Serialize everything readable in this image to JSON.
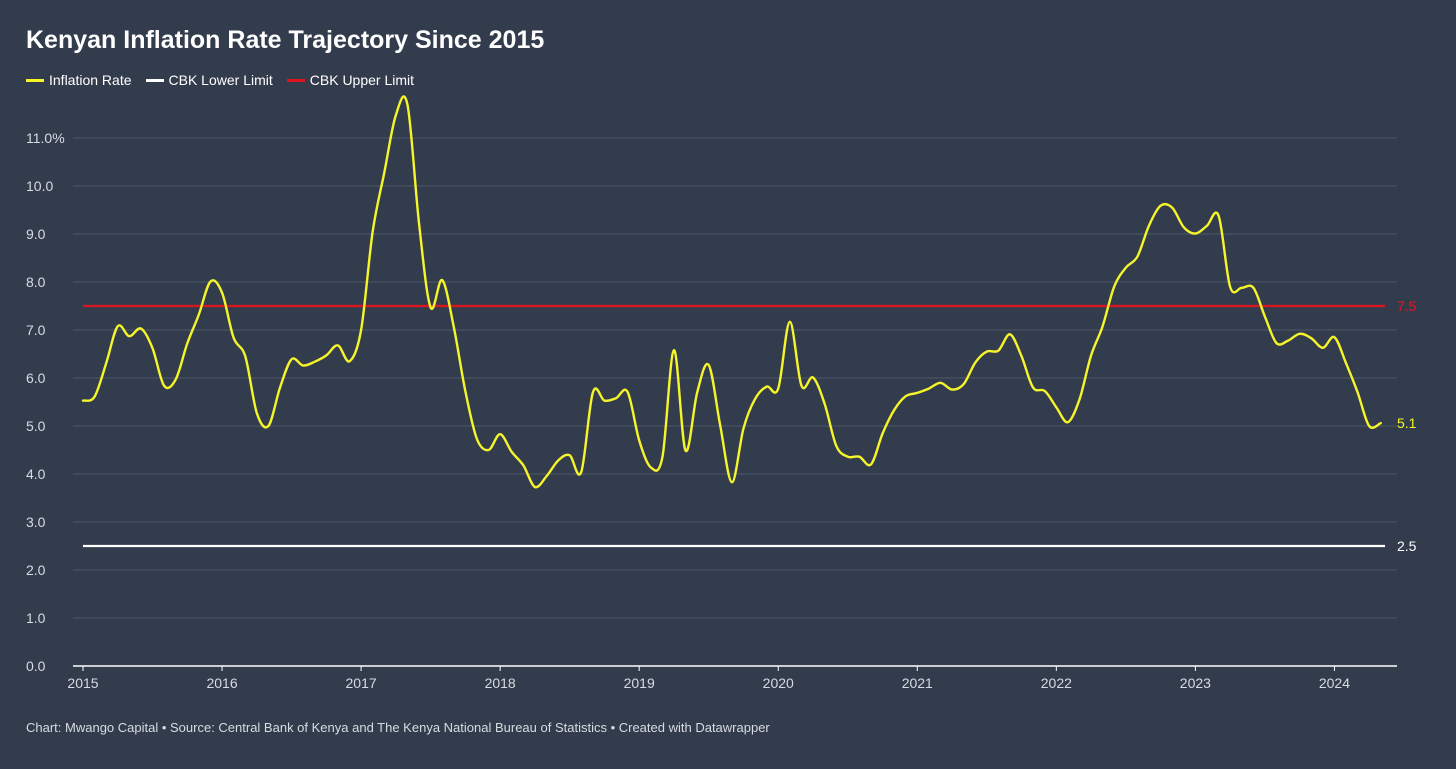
{
  "title": "Kenyan Inflation Rate Trajectory Since 2015",
  "footer": "Chart: Mwango Capital • Source: Central Bank of Kenya and The Kenya National Bureau of Statistics • Created with Datawrapper",
  "colors": {
    "background": "#333c4d",
    "inflation": "#f5f52a",
    "lower": "#ffffff",
    "upper": "#e0141e",
    "grid": "#4e5768",
    "tick": "#d7dbe2"
  },
  "legend": [
    {
      "label": "Inflation Rate",
      "color": "#f5f52a"
    },
    {
      "label": "CBK Lower Limit",
      "color": "#ffffff"
    },
    {
      "label": "CBK Upper Limit",
      "color": "#e0141e"
    }
  ],
  "chart_data": {
    "type": "line",
    "title": "Kenyan Inflation Rate Trajectory Since 2015",
    "xlabel": "",
    "ylabel": "",
    "xlim": [
      2015,
      2024.45
    ],
    "ylim": [
      0,
      12
    ],
    "grid": true,
    "legend_position": "top-left",
    "x_ticks": [
      {
        "value": 2015,
        "label": "2015"
      },
      {
        "value": 2016,
        "label": "2016"
      },
      {
        "value": 2017,
        "label": "2017"
      },
      {
        "value": 2018,
        "label": "2018"
      },
      {
        "value": 2019,
        "label": "2019"
      },
      {
        "value": 2020,
        "label": "2020"
      },
      {
        "value": 2021,
        "label": "2021"
      },
      {
        "value": 2022,
        "label": "2022"
      },
      {
        "value": 2023,
        "label": "2023"
      },
      {
        "value": 2024,
        "label": "2024"
      }
    ],
    "y_ticks": [
      {
        "value": 0,
        "label": "0.0"
      },
      {
        "value": 1,
        "label": "1.0"
      },
      {
        "value": 2,
        "label": "2.0"
      },
      {
        "value": 3,
        "label": "3.0"
      },
      {
        "value": 4,
        "label": "4.0"
      },
      {
        "value": 5,
        "label": "5.0"
      },
      {
        "value": 6,
        "label": "6.0"
      },
      {
        "value": 7,
        "label": "7.0"
      },
      {
        "value": 8,
        "label": "8.0"
      },
      {
        "value": 9,
        "label": "9.0"
      },
      {
        "value": 10,
        "label": "10.0"
      },
      {
        "value": 11,
        "label": "11.0%"
      }
    ],
    "series": [
      {
        "name": "Inflation Rate",
        "color": "#f5f52a",
        "end_label": "5.1",
        "points": [
          [
            2015.0,
            5.53
          ],
          [
            2015.083,
            5.61
          ],
          [
            2015.167,
            6.31
          ],
          [
            2015.25,
            7.08
          ],
          [
            2015.333,
            6.87
          ],
          [
            2015.417,
            7.03
          ],
          [
            2015.5,
            6.62
          ],
          [
            2015.583,
            5.84
          ],
          [
            2015.667,
            5.97
          ],
          [
            2015.75,
            6.72
          ],
          [
            2015.833,
            7.32
          ],
          [
            2015.917,
            8.01
          ],
          [
            2016.0,
            7.78
          ],
          [
            2016.083,
            6.84
          ],
          [
            2016.167,
            6.45
          ],
          [
            2016.25,
            5.27
          ],
          [
            2016.333,
            5.0
          ],
          [
            2016.417,
            5.8
          ],
          [
            2016.5,
            6.39
          ],
          [
            2016.583,
            6.26
          ],
          [
            2016.667,
            6.34
          ],
          [
            2016.75,
            6.47
          ],
          [
            2016.833,
            6.68
          ],
          [
            2016.917,
            6.35
          ],
          [
            2017.0,
            7.0
          ],
          [
            2017.083,
            9.04
          ],
          [
            2017.167,
            10.28
          ],
          [
            2017.25,
            11.48
          ],
          [
            2017.333,
            11.7
          ],
          [
            2017.417,
            9.21
          ],
          [
            2017.5,
            7.47
          ],
          [
            2017.583,
            8.04
          ],
          [
            2017.667,
            7.06
          ],
          [
            2017.75,
            5.72
          ],
          [
            2017.833,
            4.73
          ],
          [
            2017.917,
            4.5
          ],
          [
            2018.0,
            4.83
          ],
          [
            2018.083,
            4.46
          ],
          [
            2018.167,
            4.18
          ],
          [
            2018.25,
            3.73
          ],
          [
            2018.333,
            3.95
          ],
          [
            2018.417,
            4.28
          ],
          [
            2018.5,
            4.39
          ],
          [
            2018.583,
            4.04
          ],
          [
            2018.667,
            5.7
          ],
          [
            2018.75,
            5.53
          ],
          [
            2018.833,
            5.58
          ],
          [
            2018.917,
            5.71
          ],
          [
            2019.0,
            4.7
          ],
          [
            2019.083,
            4.14
          ],
          [
            2019.167,
            4.35
          ],
          [
            2019.25,
            6.58
          ],
          [
            2019.333,
            4.49
          ],
          [
            2019.417,
            5.7
          ],
          [
            2019.5,
            6.27
          ],
          [
            2019.583,
            5.0
          ],
          [
            2019.667,
            3.83
          ],
          [
            2019.75,
            4.95
          ],
          [
            2019.833,
            5.56
          ],
          [
            2019.917,
            5.82
          ],
          [
            2020.0,
            5.78
          ],
          [
            2020.083,
            7.17
          ],
          [
            2020.167,
            5.84
          ],
          [
            2020.25,
            6.01
          ],
          [
            2020.333,
            5.47
          ],
          [
            2020.417,
            4.59
          ],
          [
            2020.5,
            4.36
          ],
          [
            2020.583,
            4.36
          ],
          [
            2020.667,
            4.2
          ],
          [
            2020.75,
            4.84
          ],
          [
            2020.833,
            5.33
          ],
          [
            2020.917,
            5.62
          ],
          [
            2021.0,
            5.69
          ],
          [
            2021.083,
            5.78
          ],
          [
            2021.167,
            5.9
          ],
          [
            2021.25,
            5.76
          ],
          [
            2021.333,
            5.87
          ],
          [
            2021.417,
            6.32
          ],
          [
            2021.5,
            6.55
          ],
          [
            2021.583,
            6.57
          ],
          [
            2021.667,
            6.91
          ],
          [
            2021.75,
            6.45
          ],
          [
            2021.833,
            5.8
          ],
          [
            2021.917,
            5.73
          ],
          [
            2022.0,
            5.39
          ],
          [
            2022.083,
            5.08
          ],
          [
            2022.167,
            5.56
          ],
          [
            2022.25,
            6.47
          ],
          [
            2022.333,
            7.08
          ],
          [
            2022.417,
            7.91
          ],
          [
            2022.5,
            8.3
          ],
          [
            2022.583,
            8.53
          ],
          [
            2022.667,
            9.18
          ],
          [
            2022.75,
            9.59
          ],
          [
            2022.833,
            9.55
          ],
          [
            2022.917,
            9.14
          ],
          [
            2023.0,
            9.01
          ],
          [
            2023.083,
            9.17
          ],
          [
            2023.167,
            9.38
          ],
          [
            2023.25,
            7.9
          ],
          [
            2023.333,
            7.88
          ],
          [
            2023.417,
            7.88
          ],
          [
            2023.5,
            7.28
          ],
          [
            2023.583,
            6.73
          ],
          [
            2023.667,
            6.78
          ],
          [
            2023.75,
            6.92
          ],
          [
            2023.833,
            6.83
          ],
          [
            2023.917,
            6.63
          ],
          [
            2024.0,
            6.85
          ],
          [
            2024.083,
            6.31
          ],
          [
            2024.167,
            5.7
          ],
          [
            2024.25,
            5.0
          ],
          [
            2024.333,
            5.06
          ]
        ]
      },
      {
        "name": "CBK Lower Limit",
        "color": "#ffffff",
        "constant": 2.5,
        "end_label": "2.5"
      },
      {
        "name": "CBK Upper Limit",
        "color": "#e0141e",
        "constant": 7.5,
        "end_label": "7.5"
      }
    ]
  }
}
